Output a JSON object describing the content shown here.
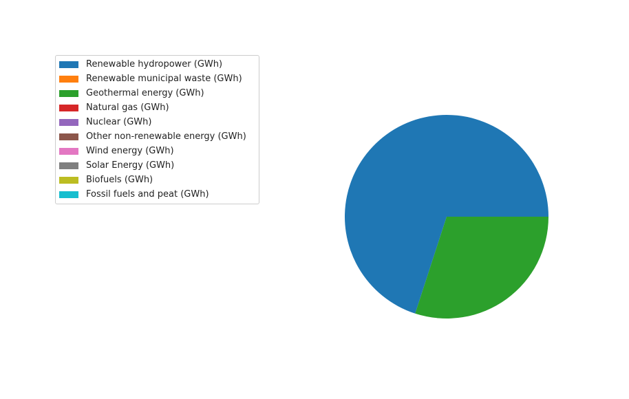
{
  "chart_data": {
    "type": "pie",
    "title": "",
    "start_angle_deg": 0,
    "direction": "counterclockwise",
    "legend_position": "upper-left",
    "slices": [
      {
        "label": "Renewable hydropower (GWh)",
        "value": 70.0,
        "color": "#1f77b4"
      },
      {
        "label": "Renewable municipal waste (GWh)",
        "value": 0.0,
        "color": "#ff7f0e"
      },
      {
        "label": "Geothermal energy (GWh)",
        "value": 30.0,
        "color": "#2ca02c"
      },
      {
        "label": "Natural gas (GWh)",
        "value": 0.0,
        "color": "#d62728"
      },
      {
        "label": "Nuclear (GWh)",
        "value": 0.0,
        "color": "#9467bd"
      },
      {
        "label": "Other non-renewable energy (GWh)",
        "value": 0.0,
        "color": "#8c564b"
      },
      {
        "label": "Wind energy (GWh)",
        "value": 0.0,
        "color": "#e377c2"
      },
      {
        "label": "Solar Energy (GWh)",
        "value": 0.0,
        "color": "#7f7f7f"
      },
      {
        "label": "Biofuels (GWh)",
        "value": 0.0,
        "color": "#bcbd22"
      },
      {
        "label": "Fossil fuels and peat (GWh)",
        "value": 0.0,
        "color": "#17becf"
      }
    ]
  }
}
